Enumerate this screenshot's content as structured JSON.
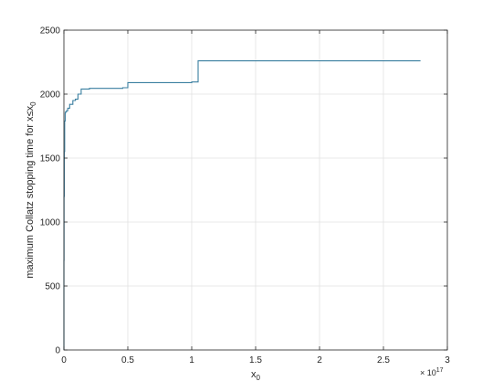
{
  "chart_data": {
    "type": "line",
    "title": "",
    "xlabel": "x",
    "xlabel_subscript": "0",
    "ylabel": "maximum Collatz stopping time for x≤x",
    "ylabel_subscript": "0",
    "x_exponent_prefix": "× 10",
    "x_exponent": "17",
    "xlim": [
      0,
      3
    ],
    "ylim": [
      0,
      2500
    ],
    "xticks": [
      0,
      0.5,
      1,
      1.5,
      2,
      2.5,
      3
    ],
    "xtick_labels": [
      "0",
      "0.5",
      "1",
      "1.5",
      "2",
      "2.5",
      "3"
    ],
    "yticks": [
      0,
      500,
      1000,
      1500,
      2000,
      2500
    ],
    "ytick_labels": [
      "0",
      "500",
      "1000",
      "1500",
      "2000",
      "2500"
    ],
    "grid": true,
    "box": true,
    "series": [
      {
        "color": "#3a7fa0",
        "step": true,
        "x": [
          0,
          0.0001,
          0.001,
          0.003,
          0.006,
          0.01,
          0.012,
          0.02,
          0.03,
          0.045,
          0.07,
          0.09,
          0.11,
          0.135,
          0.2,
          0.3,
          0.46,
          0.5,
          0.7,
          1.0,
          1.05,
          1.5,
          2.0,
          2.5,
          2.79
        ],
        "y": [
          0,
          700,
          1200,
          1550,
          1790,
          1850,
          1860,
          1870,
          1890,
          1920,
          1950,
          1960,
          2000,
          2040,
          2045,
          2045,
          2050,
          2090,
          2090,
          2095,
          2260,
          2260,
          2260,
          2260,
          2260
        ]
      }
    ]
  }
}
